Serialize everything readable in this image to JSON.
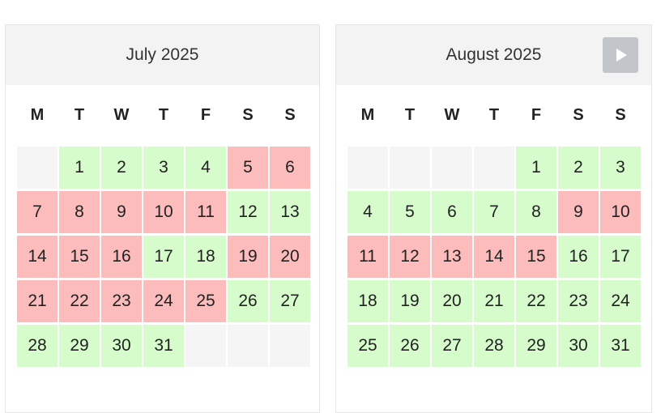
{
  "weekdays": [
    "M",
    "T",
    "W",
    "T",
    "F",
    "S",
    "S"
  ],
  "colors": {
    "available": "#d6fccc",
    "unavailable": "#fdbcbc",
    "empty": "#f5f5f5",
    "header": "#f3f3f3",
    "next_button": "#c2c6ca"
  },
  "next_button_icon": "play-triangle-icon",
  "months": [
    {
      "id": "july",
      "title": "July 2025",
      "leading_blanks": 1,
      "trailing_blanks": 3,
      "days": [
        {
          "d": "1",
          "s": "free"
        },
        {
          "d": "2",
          "s": "free"
        },
        {
          "d": "3",
          "s": "free"
        },
        {
          "d": "4",
          "s": "free"
        },
        {
          "d": "5",
          "s": "busy"
        },
        {
          "d": "6",
          "s": "busy"
        },
        {
          "d": "7",
          "s": "busy"
        },
        {
          "d": "8",
          "s": "busy"
        },
        {
          "d": "9",
          "s": "busy"
        },
        {
          "d": "10",
          "s": "busy"
        },
        {
          "d": "11",
          "s": "busy"
        },
        {
          "d": "12",
          "s": "free"
        },
        {
          "d": "13",
          "s": "free"
        },
        {
          "d": "14",
          "s": "busy"
        },
        {
          "d": "15",
          "s": "busy"
        },
        {
          "d": "16",
          "s": "busy"
        },
        {
          "d": "17",
          "s": "free"
        },
        {
          "d": "18",
          "s": "free"
        },
        {
          "d": "19",
          "s": "busy"
        },
        {
          "d": "20",
          "s": "busy"
        },
        {
          "d": "21",
          "s": "busy"
        },
        {
          "d": "22",
          "s": "busy"
        },
        {
          "d": "23",
          "s": "busy"
        },
        {
          "d": "24",
          "s": "busy"
        },
        {
          "d": "25",
          "s": "busy"
        },
        {
          "d": "26",
          "s": "free"
        },
        {
          "d": "27",
          "s": "free"
        },
        {
          "d": "28",
          "s": "free"
        },
        {
          "d": "29",
          "s": "free"
        },
        {
          "d": "30",
          "s": "free"
        },
        {
          "d": "31",
          "s": "free"
        }
      ]
    },
    {
      "id": "august",
      "title": "August 2025",
      "leading_blanks": 4,
      "trailing_blanks": 0,
      "days": [
        {
          "d": "1",
          "s": "free"
        },
        {
          "d": "2",
          "s": "free"
        },
        {
          "d": "3",
          "s": "free"
        },
        {
          "d": "4",
          "s": "free"
        },
        {
          "d": "5",
          "s": "free"
        },
        {
          "d": "6",
          "s": "free"
        },
        {
          "d": "7",
          "s": "free"
        },
        {
          "d": "8",
          "s": "free"
        },
        {
          "d": "9",
          "s": "busy"
        },
        {
          "d": "10",
          "s": "busy"
        },
        {
          "d": "11",
          "s": "busy"
        },
        {
          "d": "12",
          "s": "busy"
        },
        {
          "d": "13",
          "s": "busy"
        },
        {
          "d": "14",
          "s": "busy"
        },
        {
          "d": "15",
          "s": "busy"
        },
        {
          "d": "16",
          "s": "free"
        },
        {
          "d": "17",
          "s": "free"
        },
        {
          "d": "18",
          "s": "free"
        },
        {
          "d": "19",
          "s": "free"
        },
        {
          "d": "20",
          "s": "free"
        },
        {
          "d": "21",
          "s": "free"
        },
        {
          "d": "22",
          "s": "free"
        },
        {
          "d": "23",
          "s": "free"
        },
        {
          "d": "24",
          "s": "free"
        },
        {
          "d": "25",
          "s": "free"
        },
        {
          "d": "26",
          "s": "free"
        },
        {
          "d": "27",
          "s": "free"
        },
        {
          "d": "28",
          "s": "free"
        },
        {
          "d": "29",
          "s": "free"
        },
        {
          "d": "30",
          "s": "free"
        },
        {
          "d": "31",
          "s": "free"
        }
      ]
    }
  ]
}
